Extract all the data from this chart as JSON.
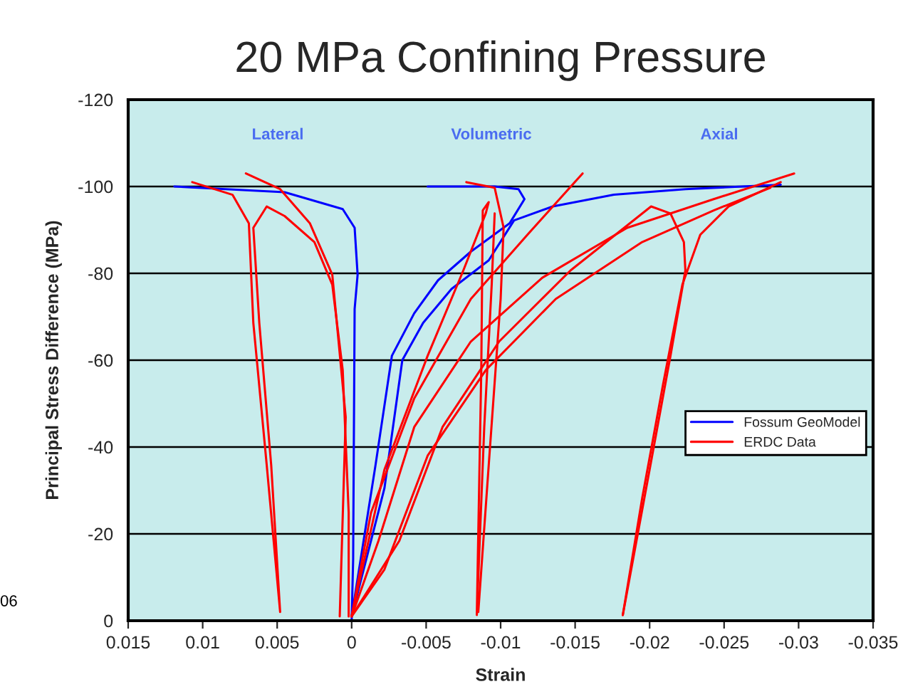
{
  "chart_data": {
    "type": "line",
    "title": "20 MPa Confining Pressure",
    "xlabel": "Strain",
    "ylabel": "Principal Stress Difference (MPa)",
    "xlim": [
      0.015,
      -0.035
    ],
    "xticks": [
      0.015,
      0.01,
      0.005,
      0,
      -0.005,
      -0.01,
      -0.015,
      -0.02,
      -0.025,
      -0.03,
      -0.035
    ],
    "ylim": [
      0,
      -120
    ],
    "yticks": [
      0,
      -20,
      -40,
      -60,
      -80,
      -100,
      -120
    ],
    "grid": "y",
    "legend": "right",
    "marker": "none",
    "line_style": "solid",
    "annotations": [
      "Lateral",
      "Volumetric",
      "Axial",
      "06"
    ],
    "series": [
      {
        "name": "Fossum GeoModel",
        "color": "#0000ff",
        "x": [
          0,
          -0.0001,
          -0.0002,
          -0.0004,
          -0.0002,
          0.0006,
          0.0045,
          0.0119
        ],
        "values": [
          0,
          -14.1,
          -71.8,
          -79.7,
          -90.5,
          -94.8,
          -98.7,
          -100.0
        ]
      },
      {
        "color": "#0000ff",
        "x": [
          0,
          -0.0016,
          -0.0027,
          -0.0042,
          -0.0058,
          -0.008,
          -0.0106,
          -0.0116,
          -0.0112,
          -0.0096,
          -0.0051
        ],
        "values": [
          -1,
          -35.8,
          -61.0,
          -70.8,
          -78.4,
          -85.0,
          -91.5,
          -97.1,
          -99.4,
          -100.0,
          -100.0
        ]
      },
      {
        "color": "#0000ff",
        "x": [
          0,
          -0.0022,
          -0.0034,
          -0.0048,
          -0.0067,
          -0.0092,
          -0.0109,
          -0.0135,
          -0.0176,
          -0.0224,
          -0.0288
        ],
        "values": [
          -1,
          -30.5,
          -60.0,
          -68.6,
          -76.4,
          -83.0,
          -92.2,
          -95.4,
          -98.1,
          -99.4,
          -100.4
        ]
      },
      {
        "name": "ERDC Data",
        "color": "#ff0000",
        "x": [
          0.0107,
          0.008,
          0.0069,
          0.0066,
          0.0057,
          0.0048,
          0.0054,
          0.0062,
          0.0066,
          0.0057,
          0.0045,
          0.0025,
          0.0013,
          0.0006,
          0.0002,
          0.0002
        ],
        "values": [
          -101.0,
          -98.1,
          -91.5,
          -68.6,
          -35.8,
          -2.0,
          -35.8,
          -68.6,
          -90.5,
          -95.4,
          -93.2,
          -87.2,
          -77.4,
          -57.7,
          -24.9,
          -1.0
        ]
      },
      {
        "color": "#ff0000",
        "x": [
          0.0071,
          0.0048,
          0.0028,
          0.0013,
          0.0004,
          0.0008
        ],
        "values": [
          -103.0,
          -99.4,
          -91.5,
          -79.7,
          -46.9,
          -1.0
        ]
      },
      {
        "color": "#ff0000",
        "x": [
          0,
          -0.0022,
          -0.0051,
          -0.0075,
          -0.009,
          -0.0092,
          -0.0088,
          -0.0087,
          -0.0084,
          -0.0089,
          -0.0094,
          -0.0096
        ],
        "values": [
          -1,
          -34.8,
          -61.0,
          -80.7,
          -93.8,
          -96.4,
          -94.5,
          -57.7,
          -1.3,
          -44.6,
          -77.4,
          -93.8
        ]
      },
      {
        "color": "#ff0000",
        "x": [
          -0.0077,
          -0.0096,
          -0.0102,
          -0.01,
          -0.0092,
          -0.0085
        ],
        "values": [
          -101.0,
          -99.7,
          -90.5,
          -74.1,
          -35.8,
          -2.0
        ]
      },
      {
        "color": "#ff0000",
        "x": [
          0,
          -0.0013,
          -0.0042,
          -0.008,
          -0.0118,
          -0.0155
        ],
        "values": [
          -1,
          -24.9,
          -51.2,
          -74.1,
          -88.9,
          -103.0
        ]
      },
      {
        "color": "#ff0000",
        "x": [
          0,
          -0.0018,
          -0.0042,
          -0.008,
          -0.0128,
          -0.0185,
          -0.0243,
          -0.0297
        ],
        "values": [
          -1,
          -18.4,
          -44.6,
          -64.3,
          -79.0,
          -90.5,
          -97.1,
          -103.0
        ]
      },
      {
        "color": "#ff0000",
        "x": [
          0,
          -0.0032,
          -0.0061,
          -0.0099,
          -0.0147,
          -0.0201,
          -0.0214,
          -0.0223,
          -0.0224,
          -0.0214,
          -0.02,
          -0.0182
        ],
        "values": [
          -1,
          -18.4,
          -44.6,
          -64.3,
          -80.7,
          -95.4,
          -93.8,
          -87.2,
          -80.7,
          -61.0,
          -34.8,
          -1.3
        ]
      },
      {
        "color": "#ff0000",
        "x": [
          -0.0182,
          -0.0195,
          -0.0209,
          -0.0222,
          -0.0234,
          -0.0253,
          -0.0288
        ],
        "values": [
          -1.3,
          -28.2,
          -54.4,
          -77.4,
          -88.9,
          -95.4,
          -101.0
        ]
      },
      {
        "color": "#ff0000",
        "x": [
          0,
          -0.0022,
          -0.0051,
          -0.009,
          -0.0137,
          -0.0195,
          -0.0243,
          -0.0281
        ],
        "values": [
          -1,
          -11.8,
          -38.0,
          -57.7,
          -74.1,
          -87.2,
          -94.5,
          -99.7
        ]
      }
    ]
  }
}
